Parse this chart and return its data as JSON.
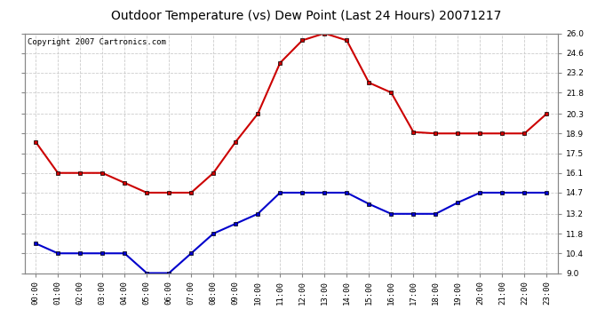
{
  "title": "Outdoor Temperature (vs) Dew Point (Last 24 Hours) 20071217",
  "copyright_text": "Copyright 2007 Cartronics.com",
  "x_labels": [
    "00:00",
    "01:00",
    "02:00",
    "03:00",
    "04:00",
    "05:00",
    "06:00",
    "07:00",
    "08:00",
    "09:00",
    "10:00",
    "11:00",
    "12:00",
    "13:00",
    "14:00",
    "15:00",
    "16:00",
    "17:00",
    "18:00",
    "19:00",
    "20:00",
    "21:00",
    "22:00",
    "23:00"
  ],
  "temp_data": [
    18.3,
    16.1,
    16.1,
    16.1,
    15.4,
    14.7,
    14.7,
    14.7,
    16.1,
    18.3,
    20.3,
    23.9,
    25.5,
    26.0,
    25.5,
    22.5,
    21.8,
    19.0,
    18.9,
    18.9,
    18.9,
    18.9,
    18.9,
    20.3
  ],
  "dew_data": [
    11.1,
    10.4,
    10.4,
    10.4,
    10.4,
    9.0,
    9.0,
    10.4,
    11.8,
    12.5,
    13.2,
    14.7,
    14.7,
    14.7,
    14.7,
    13.9,
    13.2,
    13.2,
    13.2,
    14.0,
    14.7,
    14.7,
    14.7,
    14.7
  ],
  "temp_color": "#cc0000",
  "dew_color": "#0000cc",
  "marker": "s",
  "marker_size": 3,
  "line_width": 1.5,
  "ylim": [
    9.0,
    26.0
  ],
  "yticks": [
    9.0,
    10.4,
    11.8,
    13.2,
    14.7,
    16.1,
    17.5,
    18.9,
    20.3,
    21.8,
    23.2,
    24.6,
    26.0
  ],
  "ytick_labels": [
    "9.0",
    "10.4",
    "11.8",
    "13.2",
    "14.7",
    "16.1",
    "17.5",
    "18.9",
    "20.3",
    "21.8",
    "23.2",
    "24.6",
    "26.0"
  ],
  "grid_color": "#cccccc",
  "grid_style": "--",
  "bg_color": "#ffffff",
  "title_fontsize": 10,
  "copyright_fontsize": 6.5,
  "tick_fontsize": 6.5,
  "axis_label_color": "#000000"
}
